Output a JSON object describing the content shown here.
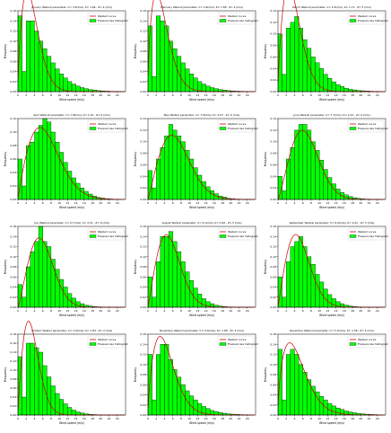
{
  "chart_data": [
    {
      "type": "bar",
      "month": "January",
      "title": "January Weibull parameter: C= 3.9(m/s), K= 1.66 , Z= 4 (m/s)",
      "k": 1.66,
      "c": 3.9,
      "xlabel": "Wind speed (m/s)",
      "ylabel": "Frequency",
      "xlim": [
        0,
        26
      ],
      "ylim": [
        0,
        0.16
      ],
      "yticks": [
        0,
        0.02,
        0.04,
        0.06,
        0.08,
        0.1,
        0.12,
        0.14,
        0.16
      ],
      "xticks": [
        0,
        2,
        4,
        6,
        8,
        10,
        12,
        14,
        16,
        18,
        20,
        22,
        24
      ],
      "x": [
        0,
        1,
        2,
        3,
        4,
        5,
        6,
        7,
        8,
        9,
        10,
        11,
        12,
        13,
        14,
        15,
        16,
        17,
        18,
        19,
        20,
        21,
        22,
        23,
        24
      ],
      "values": [
        0.15,
        0.04,
        0.14,
        0.14,
        0.12,
        0.1,
        0.085,
        0.07,
        0.057,
        0.045,
        0.035,
        0.027,
        0.02,
        0.015,
        0.011,
        0.008,
        0.006,
        0.004,
        0.003,
        0.002,
        0.0015,
        0.001,
        0.0007,
        0.0004,
        0.0002
      ],
      "legend": [
        "Weibull curve",
        "Frequencies histogram"
      ],
      "legend_position": "top-right"
    },
    {
      "type": "bar",
      "month": "February",
      "title": "February Weibull parameter: C= 3.9(m/s), K= 1.58 , Z= 4 (m/s)",
      "k": 1.58,
      "c": 3.9,
      "xlabel": "Wind speed (m/s)",
      "ylabel": "Frequency",
      "xlim": [
        0,
        26
      ],
      "ylim": [
        0,
        0.16
      ],
      "yticks": [
        0,
        0.02,
        0.04,
        0.06,
        0.08,
        0.1,
        0.12,
        0.14,
        0.16
      ],
      "xticks": [
        0,
        2,
        4,
        6,
        8,
        10,
        12,
        14,
        16,
        18,
        20,
        22,
        24
      ],
      "x": [
        0,
        1,
        2,
        3,
        4,
        5,
        6,
        7,
        8,
        9,
        10,
        11,
        12,
        13,
        14,
        15,
        16,
        17,
        18,
        19,
        20,
        21,
        22,
        23,
        24
      ],
      "values": [
        0.13,
        0.03,
        0.15,
        0.14,
        0.13,
        0.1,
        0.085,
        0.07,
        0.057,
        0.045,
        0.035,
        0.027,
        0.02,
        0.015,
        0.011,
        0.008,
        0.006,
        0.004,
        0.003,
        0.002,
        0.0015,
        0.001,
        0.0007,
        0.0004,
        0.0002
      ],
      "legend": [
        "Weibull curve",
        "Frequencies histogram"
      ],
      "legend_position": "top-right"
    },
    {
      "type": "bar",
      "month": "March",
      "title": "March Weibull parameter: C= 4.3(m/s), K= 1.71 , Z= 5 (m/s)",
      "k": 1.71,
      "c": 4.3,
      "xlabel": "Wind speed (m/s)",
      "ylabel": "Frequency",
      "xlim": [
        0,
        26
      ],
      "ylim": [
        0,
        0.14
      ],
      "yticks": [
        0,
        0.02,
        0.04,
        0.06,
        0.08,
        0.1,
        0.12,
        0.14
      ],
      "xticks": [
        0,
        2,
        4,
        6,
        8,
        10,
        12,
        14,
        16,
        18,
        20,
        22,
        24
      ],
      "x": [
        0,
        1,
        2,
        3,
        4,
        5,
        6,
        7,
        8,
        9,
        10,
        11,
        12,
        13,
        14,
        15,
        16,
        17,
        18,
        19,
        20,
        21,
        22,
        23,
        24
      ],
      "values": [
        0.1,
        0.03,
        0.11,
        0.12,
        0.13,
        0.11,
        0.09,
        0.075,
        0.06,
        0.05,
        0.04,
        0.03,
        0.023,
        0.017,
        0.012,
        0.009,
        0.006,
        0.004,
        0.003,
        0.002,
        0.0015,
        0.001,
        0.0007,
        0.0004,
        0.0002
      ],
      "legend": [
        "Weibull curve",
        "Frequencies histogram"
      ],
      "legend_position": "top-right"
    },
    {
      "type": "bar",
      "month": "April",
      "title": "April Weibull parameter: C= 7.8(m/s), K= 1.91 , Z= 6 (m/s)",
      "k": 1.91,
      "c": 7.8,
      "xlabel": "Wind speed (m/s)",
      "ylabel": "Frequency",
      "xlim": [
        0,
        26
      ],
      "ylim": [
        0,
        0.12
      ],
      "yticks": [
        0,
        0.02,
        0.04,
        0.06,
        0.08,
        0.1,
        0.12
      ],
      "xticks": [
        0,
        2,
        4,
        6,
        8,
        10,
        12,
        14,
        16,
        18,
        20,
        22,
        24
      ],
      "x": [
        0,
        1,
        2,
        3,
        4,
        5,
        6,
        7,
        8,
        9,
        10,
        11,
        12,
        13,
        14,
        15,
        16,
        17,
        18,
        19,
        20,
        21,
        22,
        23,
        24
      ],
      "values": [
        0.06,
        0.02,
        0.08,
        0.085,
        0.1,
        0.11,
        0.12,
        0.115,
        0.1,
        0.085,
        0.07,
        0.055,
        0.042,
        0.032,
        0.024,
        0.017,
        0.012,
        0.008,
        0.005,
        0.003,
        0.002,
        0.0012,
        0.0007,
        0.0004,
        0.0002
      ],
      "legend": [
        "Weibull curve",
        "Frequencies histogram"
      ],
      "legend_position": "top-right"
    },
    {
      "type": "bar",
      "month": "May",
      "title": "May Weibull parameter: C= 7.9(m/s), K= 2.07 , Z= 6 (m/s)",
      "k": 2.07,
      "c": 7.9,
      "xlabel": "Wind speed (m/s)",
      "ylabel": "Frequency",
      "xlim": [
        0,
        26
      ],
      "ylim": [
        0,
        0.14
      ],
      "yticks": [
        0,
        0.02,
        0.04,
        0.06,
        0.08,
        0.1,
        0.12,
        0.14
      ],
      "xticks": [
        0,
        2,
        4,
        6,
        8,
        10,
        12,
        14,
        16,
        18,
        20,
        22,
        24
      ],
      "x": [
        0,
        1,
        2,
        3,
        4,
        5,
        6,
        7,
        8,
        9,
        10,
        11,
        12,
        13,
        14,
        15,
        16,
        17,
        18,
        19,
        20,
        21,
        22,
        23,
        24
      ],
      "values": [
        0.05,
        0.02,
        0.07,
        0.09,
        0.11,
        0.13,
        0.12,
        0.11,
        0.1,
        0.085,
        0.07,
        0.055,
        0.042,
        0.031,
        0.022,
        0.015,
        0.01,
        0.006,
        0.004,
        0.002,
        0.0012,
        0.0007,
        0.0004,
        0.0002,
        0.0001
      ],
      "legend": [
        "Weibull curve",
        "Frequencies histogram"
      ],
      "legend_position": "top-right"
    },
    {
      "type": "bar",
      "month": "June",
      "title": "June Weibull parameter: C= 7.7(m/s), K= 2.22 , Z= 6 (m/s)",
      "k": 2.22,
      "c": 7.7,
      "xlabel": "Wind speed (m/s)",
      "ylabel": "Frequency",
      "xlim": [
        0,
        26
      ],
      "ylim": [
        0,
        0.14
      ],
      "yticks": [
        0,
        0.02,
        0.04,
        0.06,
        0.08,
        0.1,
        0.12,
        0.14
      ],
      "xticks": [
        0,
        2,
        4,
        6,
        8,
        10,
        12,
        14,
        16,
        18,
        20,
        22,
        24
      ],
      "x": [
        0,
        1,
        2,
        3,
        4,
        5,
        6,
        7,
        8,
        9,
        10,
        11,
        12,
        13,
        14,
        15,
        16,
        17,
        18,
        19,
        20,
        21,
        22,
        23,
        24
      ],
      "values": [
        0.04,
        0.015,
        0.07,
        0.09,
        0.12,
        0.13,
        0.13,
        0.12,
        0.1,
        0.085,
        0.068,
        0.052,
        0.038,
        0.027,
        0.018,
        0.012,
        0.008,
        0.005,
        0.003,
        0.0018,
        0.001,
        0.0006,
        0.0003,
        0.0002,
        0.0001
      ],
      "legend": [
        "Weibull curve",
        "Frequencies histogram"
      ],
      "legend_position": "top-right"
    },
    {
      "type": "bar",
      "month": "July",
      "title": "July Weibull parameter: C= 6.7(m/s), K= 2.21 , Z= 6 (m/s)",
      "k": 2.21,
      "c": 6.7,
      "xlabel": "Wind speed (m/s)",
      "ylabel": "Frequency",
      "xlim": [
        0,
        26
      ],
      "ylim": [
        0,
        0.16
      ],
      "yticks": [
        0,
        0.02,
        0.04,
        0.06,
        0.08,
        0.1,
        0.12,
        0.14,
        0.16
      ],
      "xticks": [
        0,
        2,
        4,
        6,
        8,
        10,
        12,
        14,
        16,
        18,
        20,
        22,
        24
      ],
      "x": [
        0,
        1,
        2,
        3,
        4,
        5,
        6,
        7,
        8,
        9,
        10,
        11,
        12,
        13,
        14,
        15,
        16,
        17,
        18,
        19,
        20,
        21,
        22,
        23,
        24
      ],
      "values": [
        0.045,
        0.02,
        0.08,
        0.11,
        0.13,
        0.16,
        0.13,
        0.12,
        0.095,
        0.075,
        0.055,
        0.04,
        0.027,
        0.018,
        0.011,
        0.007,
        0.004,
        0.0025,
        0.0015,
        0.0008,
        0.0004,
        0.0002,
        0.0001,
        5e-05,
        2e-05
      ],
      "legend": [
        "Weibull curve",
        "Frequencies histogram"
      ],
      "legend_position": "top-right"
    },
    {
      "type": "bar",
      "month": "August",
      "title": "August Weibull parameter: C= 6.1(m/s), K= 2.06 , Z= 5 (m/s)",
      "k": 2.06,
      "c": 6.1,
      "xlabel": "Wind speed (m/s)",
      "ylabel": "Frequency",
      "xlim": [
        0,
        26
      ],
      "ylim": [
        0,
        0.16
      ],
      "yticks": [
        0,
        0.02,
        0.04,
        0.06,
        0.08,
        0.1,
        0.12,
        0.14,
        0.16
      ],
      "xticks": [
        0,
        2,
        4,
        6,
        8,
        10,
        12,
        14,
        16,
        18,
        20,
        22,
        24
      ],
      "x": [
        0,
        1,
        2,
        3,
        4,
        5,
        6,
        7,
        8,
        9,
        10,
        11,
        12,
        13,
        14,
        15,
        16,
        17,
        18,
        19,
        20,
        21,
        22,
        23,
        24
      ],
      "values": [
        0.06,
        0.02,
        0.09,
        0.14,
        0.14,
        0.15,
        0.13,
        0.11,
        0.09,
        0.07,
        0.053,
        0.038,
        0.026,
        0.017,
        0.011,
        0.007,
        0.004,
        0.0025,
        0.0015,
        0.0008,
        0.0004,
        0.0002,
        0.0001,
        5e-05,
        2e-05
      ],
      "legend": [
        "Weibull curve",
        "Frequencies histogram"
      ],
      "legend_position": "top-right"
    },
    {
      "type": "bar",
      "month": "September",
      "title": "September Weibull parameter: C= 6.0(m/s), K= 2.02 , Z= 5 (m/s)",
      "k": 2.02,
      "c": 6.0,
      "xlabel": "Wind speed (m/s)",
      "ylabel": "Frequency",
      "xlim": [
        0,
        26
      ],
      "ylim": [
        0,
        0.16
      ],
      "yticks": [
        0,
        0.02,
        0.04,
        0.06,
        0.08,
        0.1,
        0.12,
        0.14,
        0.16
      ],
      "xticks": [
        0,
        2,
        4,
        6,
        8,
        10,
        12,
        14,
        16,
        18,
        20,
        22,
        24
      ],
      "x": [
        0,
        1,
        2,
        3,
        4,
        5,
        6,
        7,
        8,
        9,
        10,
        11,
        12,
        13,
        14,
        15,
        16,
        17,
        18,
        19,
        20,
        21,
        22,
        23,
        24
      ],
      "values": [
        0.06,
        0.02,
        0.09,
        0.12,
        0.13,
        0.14,
        0.12,
        0.1,
        0.085,
        0.065,
        0.05,
        0.036,
        0.025,
        0.017,
        0.011,
        0.007,
        0.004,
        0.0025,
        0.0015,
        0.0008,
        0.0004,
        0.0002,
        0.0001,
        5e-05,
        2e-05
      ],
      "legend": [
        "Weibull curve",
        "Frequencies histogram"
      ],
      "legend_position": "top-right"
    },
    {
      "type": "bar",
      "month": "October",
      "title": "October Weibull parameter: C= 3.9(m/s), K= 1.84 , Z= 4 (m/s)",
      "k": 1.84,
      "c": 3.9,
      "xlabel": "Wind speed (m/s)",
      "ylabel": "Frequency",
      "xlim": [
        0,
        26
      ],
      "ylim": [
        0,
        0.18
      ],
      "yticks": [
        0,
        0.02,
        0.04,
        0.06,
        0.08,
        0.1,
        0.12,
        0.14,
        0.16,
        0.18
      ],
      "xticks": [
        0,
        2,
        4,
        6,
        8,
        10,
        12,
        14,
        16,
        18,
        20,
        22,
        24
      ],
      "x": [
        0,
        1,
        2,
        3,
        4,
        5,
        6,
        7,
        8,
        9,
        10,
        11,
        12,
        13,
        14,
        15,
        16,
        17,
        18,
        19,
        20,
        21,
        22,
        23,
        24
      ],
      "values": [
        0.13,
        0.04,
        0.16,
        0.16,
        0.15,
        0.14,
        0.11,
        0.085,
        0.065,
        0.048,
        0.035,
        0.025,
        0.017,
        0.011,
        0.007,
        0.0045,
        0.0028,
        0.0017,
        0.001,
        0.0006,
        0.0003,
        0.0002,
        0.0001,
        5e-05,
        2e-05
      ],
      "legend": [
        "Weibull curve",
        "Frequencies histogram"
      ],
      "legend_position": "top-right"
    },
    {
      "type": "bar",
      "month": "November",
      "title": "November Weibull parameter: C= 5.0(m/s), K= 1.68 , Z= 4 (m/s)",
      "k": 1.68,
      "c": 5.0,
      "xlabel": "Wind speed (m/s)",
      "ylabel": "Frequency",
      "xlim": [
        0,
        26
      ],
      "ylim": [
        0,
        0.16
      ],
      "yticks": [
        0,
        0.02,
        0.04,
        0.06,
        0.08,
        0.1,
        0.12,
        0.14,
        0.16
      ],
      "xticks": [
        0,
        2,
        4,
        6,
        8,
        10,
        12,
        14,
        16,
        18,
        20,
        22,
        24
      ],
      "x": [
        0,
        1,
        2,
        3,
        4,
        5,
        6,
        7,
        8,
        9,
        10,
        11,
        12,
        13,
        14,
        15,
        16,
        17,
        18,
        19,
        20,
        21,
        22,
        23,
        24
      ],
      "values": [
        0.12,
        0.03,
        0.12,
        0.14,
        0.14,
        0.11,
        0.09,
        0.075,
        0.06,
        0.048,
        0.038,
        0.03,
        0.023,
        0.017,
        0.013,
        0.009,
        0.007,
        0.005,
        0.0035,
        0.0025,
        0.0017,
        0.0012,
        0.0008,
        0.0005,
        0.0003
      ],
      "legend": [
        "Weibull curve",
        "Frequencies histogram"
      ],
      "legend_position": "top-right"
    },
    {
      "type": "bar",
      "month": "December",
      "title": "December Weibull parameter: C= 5.3(m/s), K= 1.58 , Z= 4 (m/s)",
      "k": 1.58,
      "c": 5.3,
      "xlabel": "Wind speed (m/s)",
      "ylabel": "Frequency",
      "xlim": [
        0,
        26
      ],
      "ylim": [
        0,
        0.16
      ],
      "yticks": [
        0,
        0.02,
        0.04,
        0.06,
        0.08,
        0.1,
        0.12,
        0.14,
        0.16
      ],
      "xticks": [
        0,
        2,
        4,
        6,
        8,
        10,
        12,
        14,
        16,
        18,
        20,
        22,
        24
      ],
      "x": [
        0,
        1,
        2,
        3,
        4,
        5,
        6,
        7,
        8,
        9,
        10,
        11,
        12,
        13,
        14,
        15,
        16,
        17,
        18,
        19,
        20,
        21,
        22,
        23,
        24
      ],
      "values": [
        0.13,
        0.03,
        0.12,
        0.13,
        0.12,
        0.1,
        0.085,
        0.07,
        0.057,
        0.046,
        0.037,
        0.03,
        0.023,
        0.018,
        0.014,
        0.011,
        0.008,
        0.006,
        0.0045,
        0.0033,
        0.0024,
        0.0017,
        0.0012,
        0.0008,
        0.0005
      ],
      "legend": [
        "Weibull curve",
        "Frequencies histogram"
      ],
      "legend_position": "top-right"
    }
  ],
  "colors": {
    "bar_fill": "#00ff00",
    "bar_edge": "#000000",
    "curve": "#cc0000",
    "axis": "#000000"
  }
}
